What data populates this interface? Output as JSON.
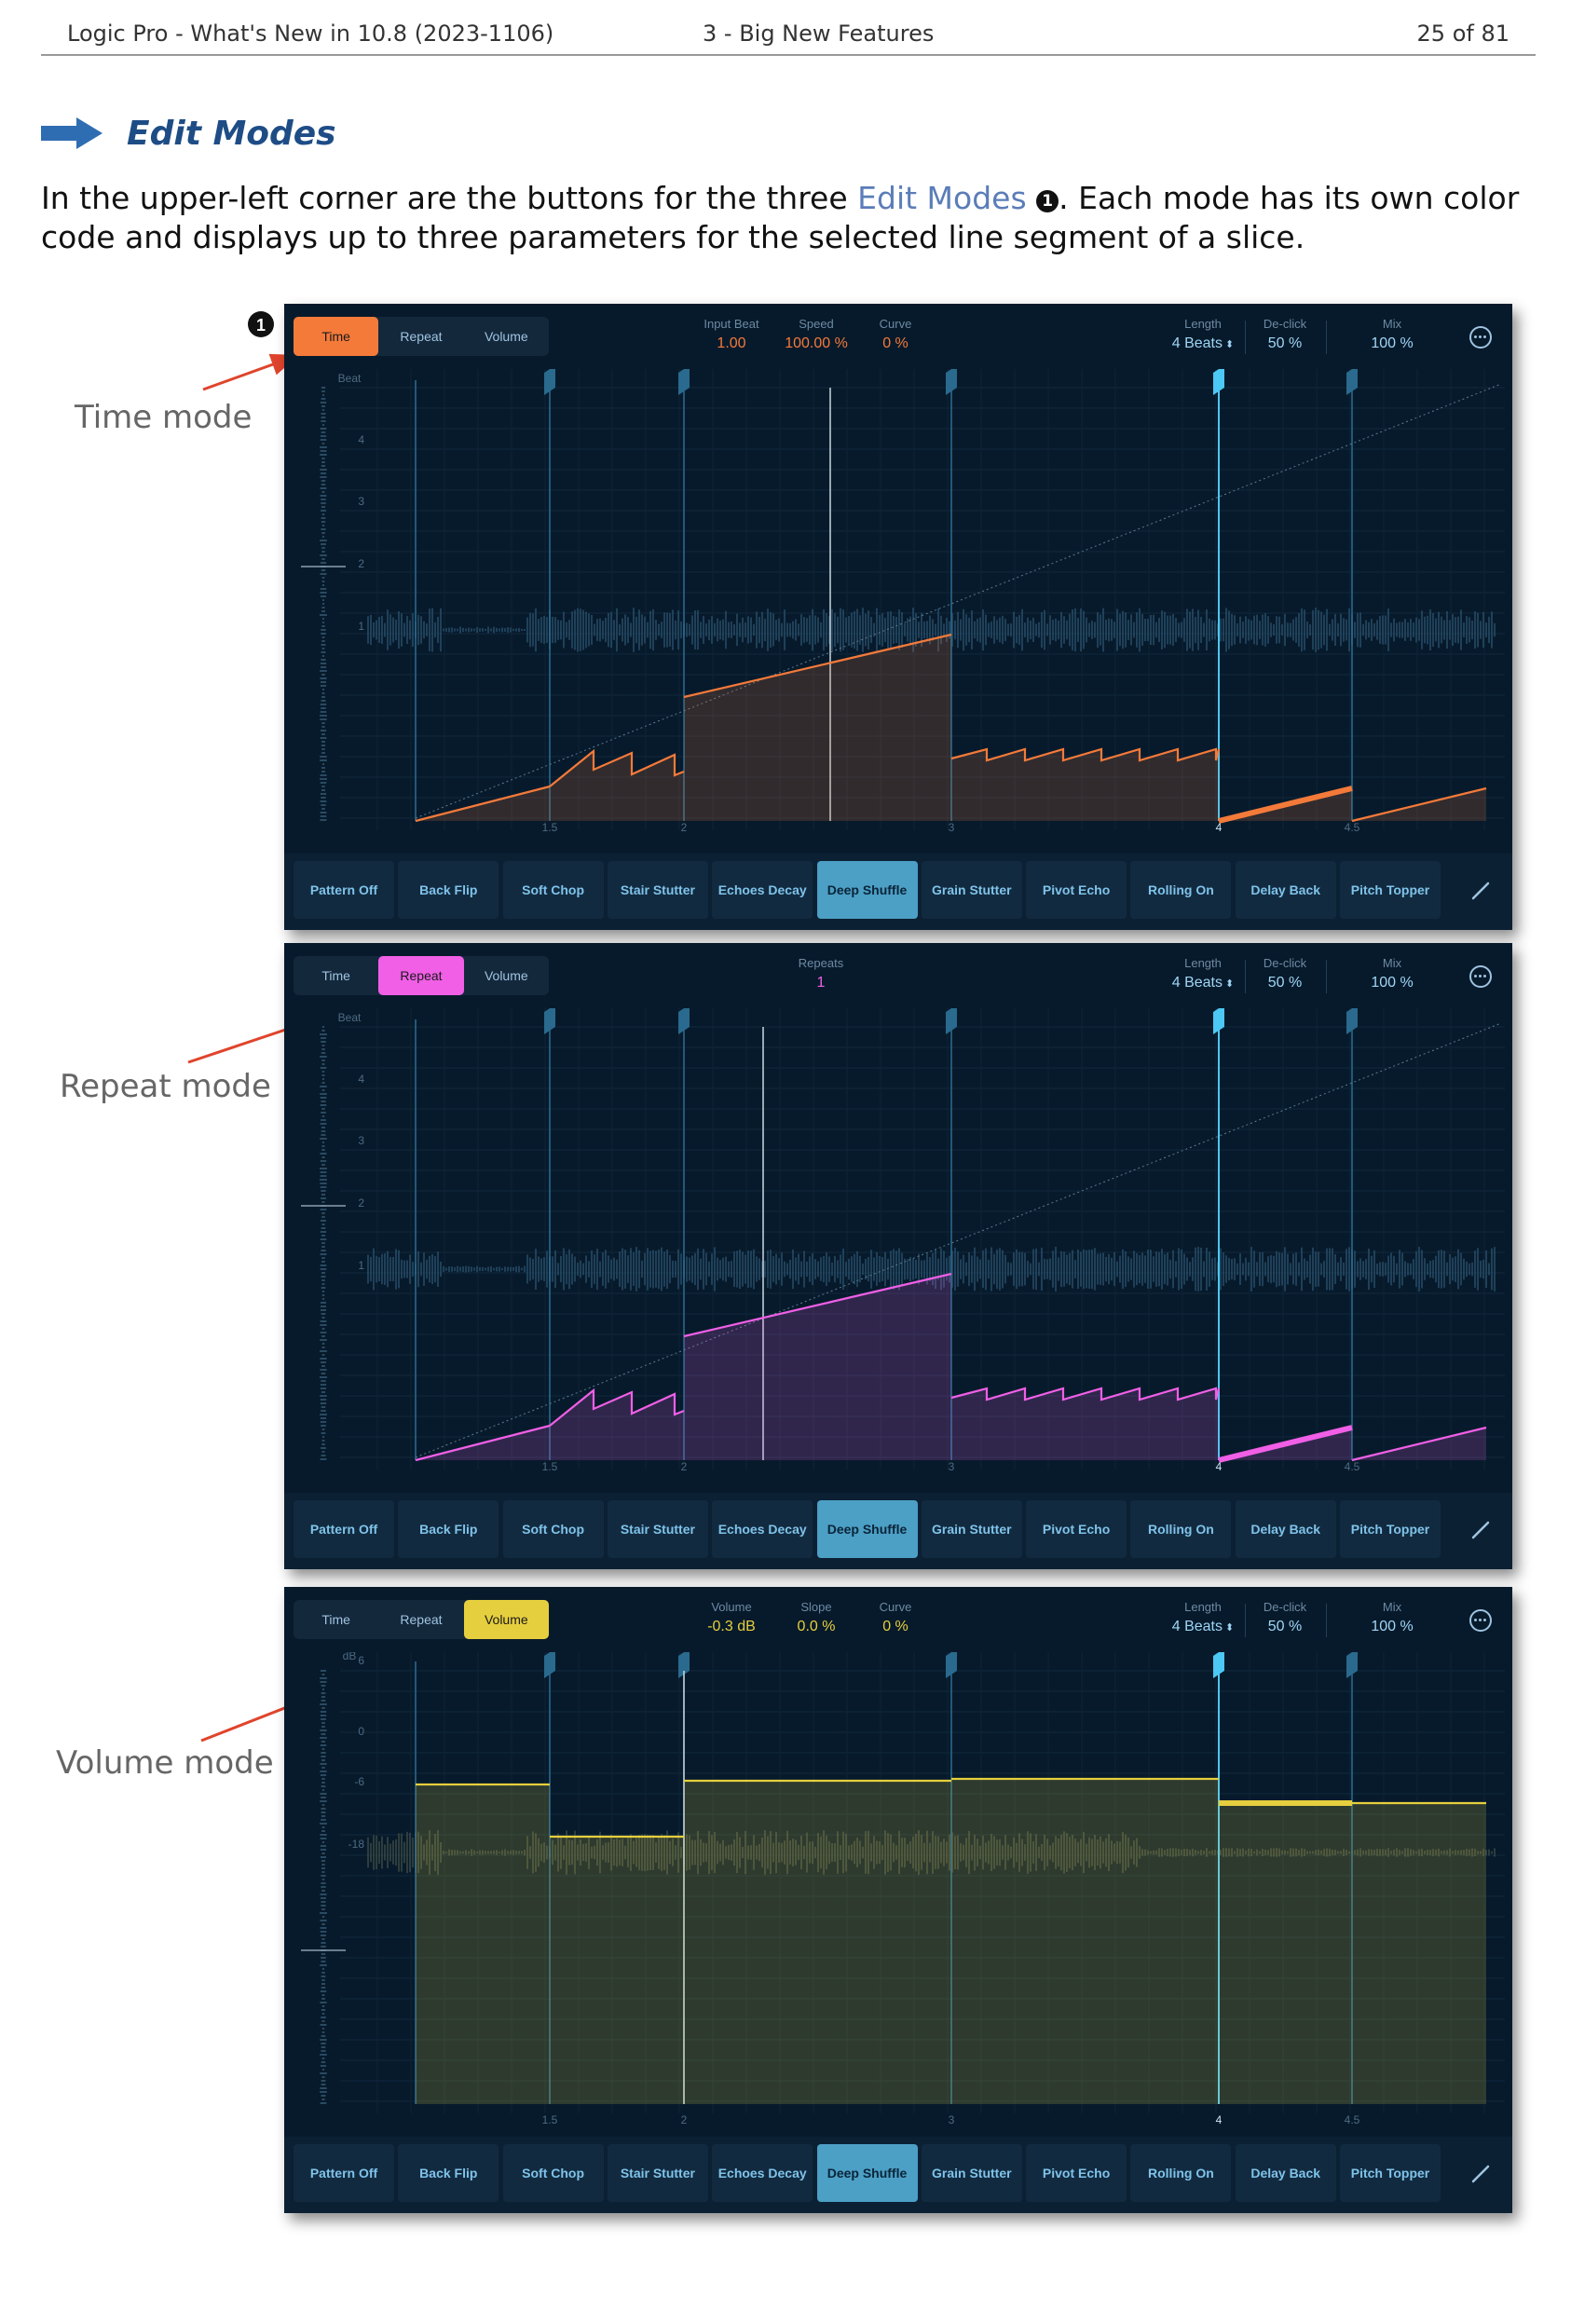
{
  "header": {
    "left": "Logic Pro - What's New in 10.8 (2023-1106)",
    "middle": "3 - Big New Features",
    "right": "25 of 81"
  },
  "section": {
    "title": "Edit Modes",
    "icon": "right-arrow-icon"
  },
  "intro": {
    "part1": "In the upper-left corner are the buttons for the three ",
    "link": "Edit Modes",
    "marker": "1",
    "part2": ". Each mode has its own color code and displays up to three parameters for the selected line segment of a slice."
  },
  "callout_marker": "1",
  "mode_tabs": [
    "Time",
    "Repeat",
    "Volume"
  ],
  "presets": [
    "Pattern Off",
    "Back Flip",
    "Soft Chop",
    "Stair Stutter",
    "Echoes Decay",
    "Deep Shuffle",
    "Grain Stutter",
    "Pivot Echo",
    "Rolling On",
    "Delay Back",
    "Pitch Topper"
  ],
  "selected_preset": "Deep Shuffle",
  "x_ticks": [
    "1.5",
    "2",
    "3",
    "4",
    "4.5"
  ],
  "right_params": [
    {
      "label": "Length",
      "value": "4 Beats"
    },
    {
      "label": "De-click",
      "value": "50 %"
    },
    {
      "label": "Mix",
      "value": "100 %"
    }
  ],
  "colors": {
    "time": "#f47a3a",
    "repeat": "#f05fe6",
    "volume": "#e6cf3e",
    "accent": "#4cc8f4",
    "link": "#5b7db8"
  },
  "panels": [
    {
      "mode_label": "Time mode",
      "active_tab": "Time",
      "left_params": [
        {
          "label": "Input Beat",
          "value": "1.00"
        },
        {
          "label": "Speed",
          "value": "100.00 %"
        },
        {
          "label": "Curve",
          "value": "0 %"
        }
      ],
      "y_axis_label": "Beat",
      "y_ticks": [
        "4",
        "3",
        "2",
        "1"
      ]
    },
    {
      "mode_label": "Repeat mode",
      "active_tab": "Repeat",
      "left_params": [
        {
          "label": "Repeats",
          "value": "1"
        }
      ],
      "y_axis_label": "Beat",
      "y_ticks": [
        "4",
        "3",
        "2",
        "1"
      ]
    },
    {
      "mode_label": "Volume mode",
      "active_tab": "Volume",
      "left_params": [
        {
          "label": "Volume",
          "value": "-0.3 dB"
        },
        {
          "label": "Slope",
          "value": "0.0 %"
        },
        {
          "label": "Curve",
          "value": "0 %"
        }
      ],
      "y_axis_label": "dB",
      "y_ticks": [
        "6",
        "0",
        "-6",
        "-18"
      ]
    }
  ]
}
